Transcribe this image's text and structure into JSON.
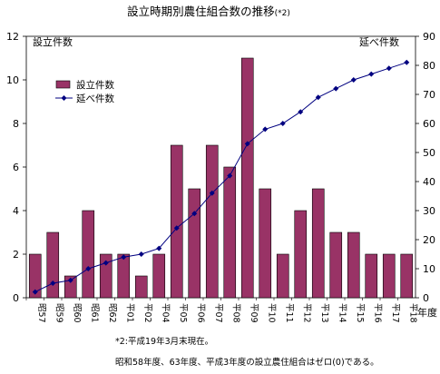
{
  "chart_data": {
    "type": "bar",
    "title": "設立時期別農住組合数の推移",
    "title_suffix": "(*2)",
    "categories": [
      "昭57",
      "昭59",
      "昭60",
      "昭61",
      "昭62",
      "平01",
      "平02",
      "平04",
      "平05",
      "平06",
      "平07",
      "平08",
      "平09",
      "平10",
      "平11",
      "平12",
      "平13",
      "平14",
      "平15",
      "平16",
      "平17",
      "平18"
    ],
    "x_unit": "年度",
    "series": [
      {
        "name": "設立件数",
        "axis": "left",
        "kind": "bar",
        "color": "#993366",
        "values": [
          2,
          3,
          1,
          4,
          2,
          2,
          1,
          2,
          7,
          5,
          7,
          6,
          11,
          5,
          2,
          4,
          5,
          3,
          3,
          2,
          2,
          2
        ]
      },
      {
        "name": "延べ件数",
        "axis": "right",
        "kind": "line",
        "color": "#000080",
        "values": [
          2,
          5,
          6,
          10,
          12,
          14,
          15,
          17,
          24,
          29,
          36,
          42,
          53,
          58,
          60,
          64,
          69,
          72,
          75,
          77,
          79,
          81
        ]
      }
    ],
    "ylabel_left": "設立件数",
    "ylabel_right": "延べ件数",
    "ylim_left": [
      0,
      12
    ],
    "ylim_right": [
      0,
      90
    ],
    "yticks_left": [
      0,
      2,
      4,
      6,
      8,
      10,
      12
    ],
    "yticks_right": [
      0,
      10,
      20,
      30,
      40,
      50,
      60,
      70,
      80,
      90
    ],
    "grid": false,
    "legend_position": "top-left"
  },
  "notes": {
    "footnote": "*2:平成19年3月末現在。",
    "remark": "昭和58年度、63年度、平成3年度の設立農住組合はゼロ(0)である。"
  }
}
